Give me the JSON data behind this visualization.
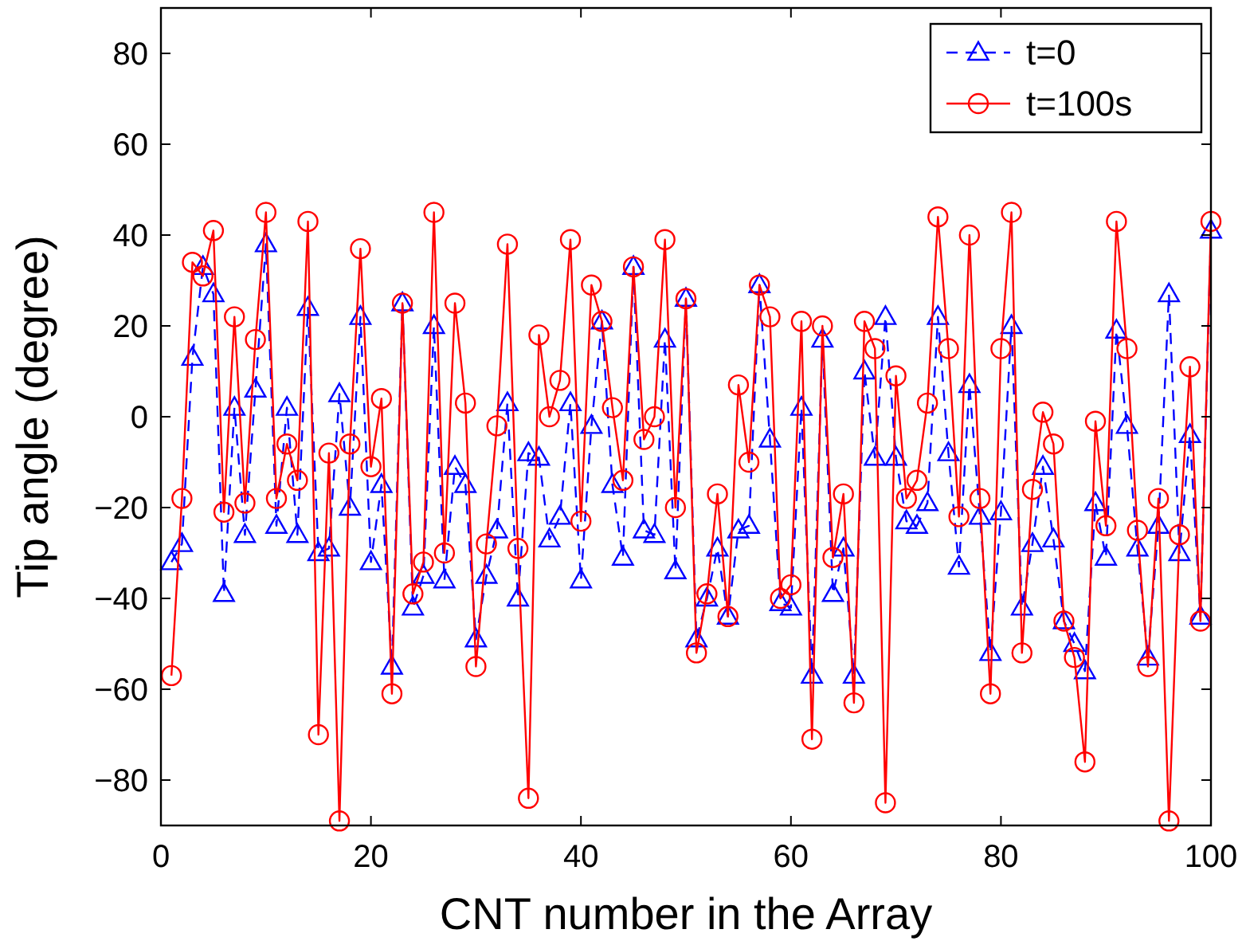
{
  "chart_data": {
    "type": "line",
    "xlabel": "CNT number in the Array",
    "ylabel": "Tip angle (degree)",
    "x": [
      1,
      2,
      3,
      4,
      5,
      6,
      7,
      8,
      9,
      10,
      11,
      12,
      13,
      14,
      15,
      16,
      17,
      18,
      19,
      20,
      21,
      22,
      23,
      24,
      25,
      26,
      27,
      28,
      29,
      30,
      31,
      32,
      33,
      34,
      35,
      36,
      37,
      38,
      39,
      40,
      41,
      42,
      43,
      44,
      45,
      46,
      47,
      48,
      49,
      50,
      51,
      52,
      53,
      54,
      55,
      56,
      57,
      58,
      59,
      60,
      61,
      62,
      63,
      64,
      65,
      66,
      67,
      68,
      69,
      70,
      71,
      72,
      73,
      74,
      75,
      76,
      77,
      78,
      79,
      80,
      81,
      82,
      83,
      84,
      85,
      86,
      87,
      88,
      89,
      90,
      91,
      92,
      93,
      94,
      95,
      96,
      97,
      98,
      99,
      100
    ],
    "xlim": [
      0,
      100
    ],
    "xticks": [
      0,
      20,
      40,
      60,
      80,
      100
    ],
    "ylim": [
      -90,
      90
    ],
    "yticks": [
      -80,
      -60,
      -40,
      -20,
      0,
      20,
      40,
      60,
      80
    ],
    "grid": false,
    "legend": "top right",
    "series": [
      {
        "name": "t=0",
        "color": "#0000ff",
        "marker": "triangle",
        "line_style": "dashed",
        "values": [
          -32,
          -28,
          13,
          33,
          27,
          -39,
          2,
          -26,
          6,
          38,
          -24,
          2,
          -26,
          24,
          -30,
          -29,
          5,
          -20,
          22,
          -32,
          -15,
          -55,
          25,
          -42,
          -35,
          20,
          -36,
          -11,
          -15,
          -49,
          -35,
          -25,
          3,
          -40,
          -8,
          -9,
          -27,
          -22,
          3,
          -36,
          -2,
          21,
          -15,
          -31,
          33,
          -25,
          -26,
          17,
          -34,
          26,
          -49,
          -40,
          -29,
          -44,
          -25,
          -24,
          29,
          -5,
          -41,
          -42,
          2,
          -57,
          17,
          -39,
          -29,
          -57,
          10,
          -9,
          22,
          -9,
          -23,
          -24,
          -19,
          22,
          -8,
          -33,
          7,
          -22,
          -52,
          -21,
          20,
          -42,
          -28,
          -11,
          -27,
          -45,
          -50,
          -56,
          -19,
          -31,
          19,
          -2,
          -29,
          -53,
          -24,
          27,
          -30,
          -4,
          -44,
          41
        ]
      },
      {
        "name": "t=100s",
        "color": "#ff0000",
        "marker": "circle",
        "line_style": "solid",
        "values": [
          -57,
          -18,
          34,
          31,
          41,
          -21,
          22,
          -19,
          17,
          45,
          -18,
          -6,
          -14,
          43,
          -70,
          -8,
          -89,
          -6,
          37,
          -11,
          4,
          -61,
          25,
          -39,
          -32,
          45,
          -30,
          25,
          3,
          -55,
          -28,
          -2,
          38,
          -29,
          -84,
          18,
          0,
          8,
          39,
          -23,
          29,
          21,
          2,
          -14,
          33,
          -5,
          0,
          39,
          -20,
          26,
          -52,
          -39,
          -17,
          -44,
          7,
          -10,
          29,
          22,
          -40,
          -37,
          21,
          -71,
          20,
          -31,
          -17,
          -63,
          21,
          15,
          -85,
          9,
          -18,
          -14,
          3,
          44,
          15,
          -22,
          40,
          -18,
          -61,
          15,
          45,
          -52,
          -16,
          1,
          -6,
          -45,
          -53,
          -76,
          -1,
          -24,
          43,
          15,
          -25,
          -55,
          -18,
          -89,
          -26,
          11,
          -45,
          43
        ]
      }
    ]
  }
}
